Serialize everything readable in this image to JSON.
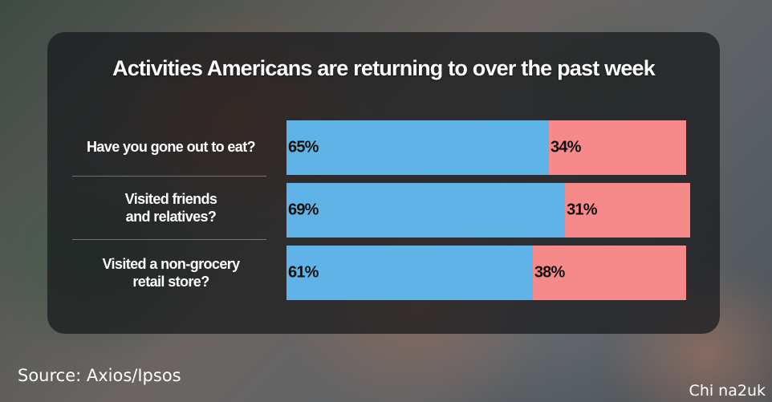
{
  "title": "Activities Americans are returning to over the past week",
  "source": "Source: Axios/Ipsos",
  "watermark": "Chi na2uk",
  "colors": {
    "yes": "#5fb3e6",
    "no": "#f68a8a"
  },
  "chart_data": {
    "type": "bar",
    "orientation": "horizontal",
    "stacked": true,
    "title": "Activities Americans are returning to over the past week",
    "categories": [
      "Have you gone out to eat?",
      "Visited friends and relatives?",
      "Visited a non-grocery retail store?"
    ],
    "series": [
      {
        "values": [
          65,
          69,
          61
        ],
        "labels": [
          "65%",
          "69%",
          "61%"
        ]
      },
      {
        "values": [
          34,
          31,
          38
        ],
        "labels": [
          "34%",
          "31%",
          "38%"
        ]
      }
    ],
    "grid": false,
    "legend": "none"
  }
}
